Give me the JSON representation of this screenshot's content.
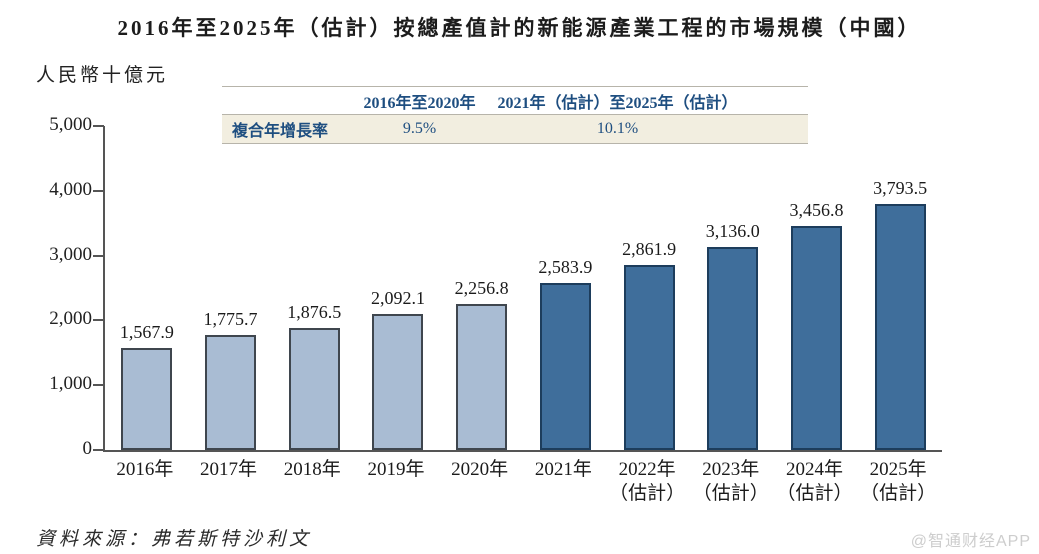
{
  "figure": {
    "title": "2016年至2025年（估計）按總產值計的新能源產業工程的市場規模（中國）",
    "unit_label": "人民幣十億元",
    "source": "資料來源：弗若斯特沙利文",
    "watermark": "@智通财经APP"
  },
  "cagr_table": {
    "row_label": "複合年增長率",
    "columns": [
      {
        "header": "2016年至2020年",
        "value": "9.5%"
      },
      {
        "header": "2021年（估計）至2025年（估計）",
        "value": "10.1%"
      }
    ]
  },
  "chart_data": {
    "type": "bar",
    "title": "2016年至2025年（估計）按總產值計的新能源產業工程的市場規模（中國）",
    "ylabel": "人民幣十億元",
    "xlabel": "",
    "ylim": [
      0,
      5000
    ],
    "ytick_step": 1000,
    "yticks": [
      "0",
      "1,000",
      "2,000",
      "3,000",
      "4,000",
      "5,000"
    ],
    "grid": false,
    "legend": "none",
    "series_colors": {
      "historical": {
        "fill": "#a9bcd3",
        "border": "#3f464e"
      },
      "estimated": {
        "fill": "#3f6e9b",
        "border": "#1d3d5c"
      }
    },
    "bars": [
      {
        "category": "2016年",
        "sublabel": "",
        "value": 1567.9,
        "value_label": "1,567.9",
        "series": "historical"
      },
      {
        "category": "2017年",
        "sublabel": "",
        "value": 1775.7,
        "value_label": "1,775.7",
        "series": "historical"
      },
      {
        "category": "2018年",
        "sublabel": "",
        "value": 1876.5,
        "value_label": "1,876.5",
        "series": "historical"
      },
      {
        "category": "2019年",
        "sublabel": "",
        "value": 2092.1,
        "value_label": "2,092.1",
        "series": "historical"
      },
      {
        "category": "2020年",
        "sublabel": "",
        "value": 2256.8,
        "value_label": "2,256.8",
        "series": "historical"
      },
      {
        "category": "2021年",
        "sublabel": "",
        "value": 2583.9,
        "value_label": "2,583.9",
        "series": "estimated"
      },
      {
        "category": "2022年",
        "sublabel": "（估計）",
        "value": 2861.9,
        "value_label": "2,861.9",
        "series": "estimated"
      },
      {
        "category": "2023年",
        "sublabel": "（估計）",
        "value": 3136.0,
        "value_label": "3,136.0",
        "series": "estimated"
      },
      {
        "category": "2024年",
        "sublabel": "（估計）",
        "value": 3456.8,
        "value_label": "3,456.8",
        "series": "estimated"
      },
      {
        "category": "2025年",
        "sublabel": "（估計）",
        "value": 3793.5,
        "value_label": "3,793.5",
        "series": "estimated"
      }
    ]
  }
}
